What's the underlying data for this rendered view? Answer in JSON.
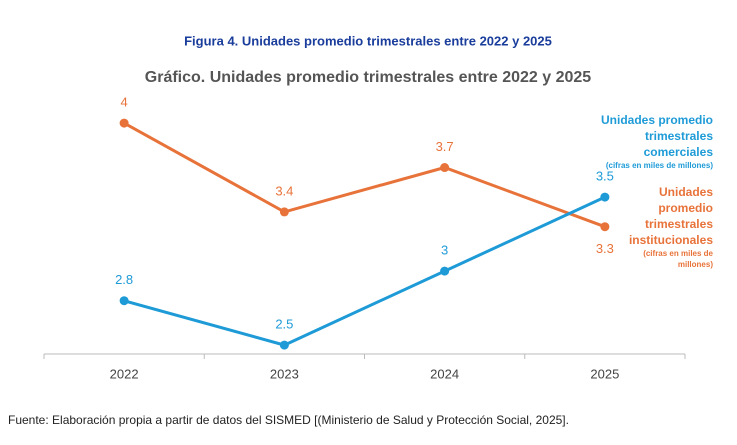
{
  "figure_title": "Figura 4. Unidades promedio trimestrales entre 2022 y 2025",
  "source": "Fuente: Elaboración propia a partir de datos del SISMED [(Ministerio de Salud y Protección Social, 2025].",
  "chart_data": {
    "type": "line",
    "title": "Gráfico. Unidades promedio trimestrales entre 2022 y 2025",
    "categories": [
      "2022",
      "2023",
      "2024",
      "2025"
    ],
    "ylim": [
      2.44,
      4.2
    ],
    "grid": false,
    "series": [
      {
        "name": "Unidades promedio trimestrales institucionales",
        "note": "(cifras en miles de millones)",
        "color": "#e8733a",
        "values": [
          4.0,
          3.4,
          3.7,
          3.3
        ]
      },
      {
        "name": "Unidades promedio trimestrales comerciales",
        "note": "(cifras en miles de millones)",
        "color": "#1e9bd7",
        "values": [
          2.8,
          2.5,
          3.0,
          3.5
        ]
      }
    ]
  }
}
